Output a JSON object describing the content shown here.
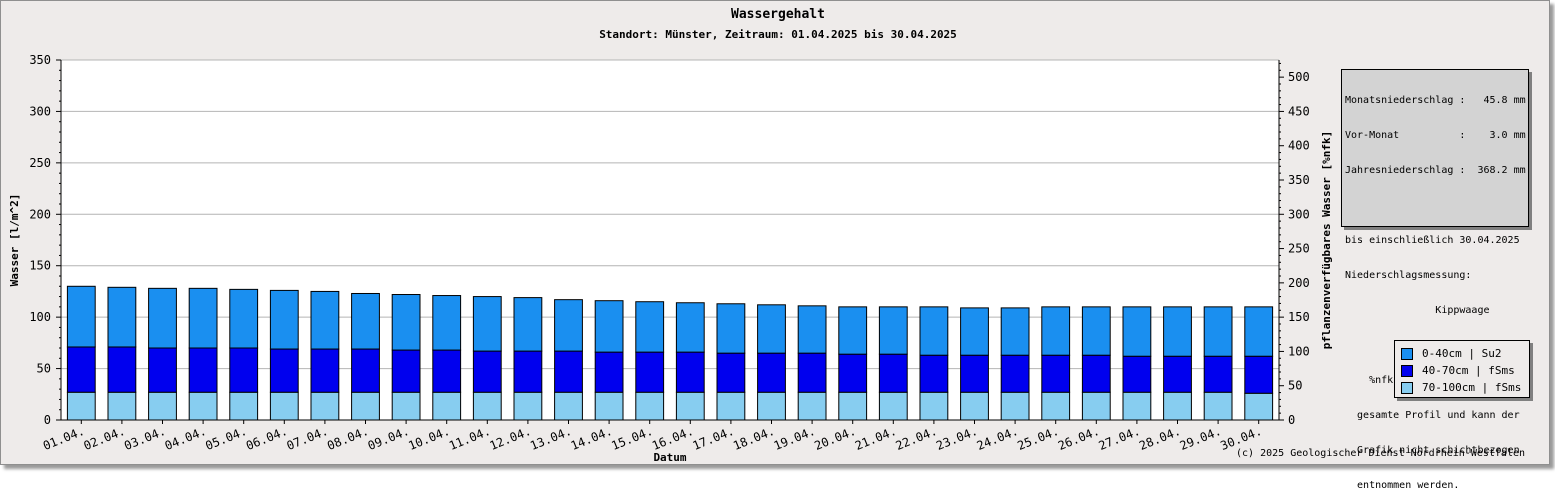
{
  "chart_data": {
    "type": "bar",
    "stacked": true,
    "title": "Wassergehalt",
    "subtitle": "Standort: Münster, Zeitraum: 01.04.2025 bis 30.04.2025",
    "xlabel": "Datum",
    "ylabel": "Wasser [l/m^2]",
    "ylabel_right": "pflanzenverfügbares Wasser [%nfk]",
    "ylim": [
      0,
      350
    ],
    "y_ticks": [
      0,
      50,
      100,
      150,
      200,
      250,
      300,
      350
    ],
    "ylim_right": [
      0,
      525
    ],
    "y_ticks_right": [
      0,
      50,
      100,
      150,
      200,
      250,
      300,
      350,
      400,
      450,
      500
    ],
    "grid": true,
    "legend_position": "bottom-right",
    "categories": [
      "01.04.",
      "02.04.",
      "03.04.",
      "04.04.",
      "05.04.",
      "06.04.",
      "07.04.",
      "08.04.",
      "09.04.",
      "10.04.",
      "11.04.",
      "12.04.",
      "13.04.",
      "14.04.",
      "15.04.",
      "16.04.",
      "17.04.",
      "18.04.",
      "19.04.",
      "20.04.",
      "21.04.",
      "22.04.",
      "23.04.",
      "24.04.",
      "25.04.",
      "26.04.",
      "27.04.",
      "28.04.",
      "29.04.",
      "30.04."
    ],
    "series": [
      {
        "name": "70-100cm | fSms",
        "color": "#87cdf0",
        "values": [
          27,
          27,
          27,
          27,
          27,
          27,
          27,
          27,
          27,
          27,
          27,
          27,
          27,
          27,
          27,
          27,
          27,
          27,
          27,
          27,
          27,
          27,
          27,
          27,
          27,
          27,
          27,
          27,
          27,
          26
        ]
      },
      {
        "name": "40-70cm | fSms",
        "color": "#0000ee",
        "values": [
          44,
          44,
          43,
          43,
          43,
          42,
          42,
          42,
          41,
          41,
          40,
          40,
          40,
          39,
          39,
          39,
          38,
          38,
          38,
          37,
          37,
          36,
          36,
          36,
          36,
          36,
          35,
          35,
          35,
          36
        ]
      },
      {
        "name": "0-40cm | Su2",
        "color": "#1a8ff0",
        "values": [
          59,
          58,
          58,
          58,
          57,
          57,
          56,
          54,
          54,
          53,
          53,
          52,
          50,
          50,
          49,
          48,
          48,
          47,
          46,
          46,
          46,
          47,
          46,
          46,
          47,
          47,
          48,
          48,
          48,
          48
        ]
      }
    ]
  },
  "info": {
    "lines": [
      "Monatsniederschlag :   45.8 mm",
      "Vor-Monat          :    3.0 mm",
      "Jahresniederschlag :  368.2 mm",
      "",
      "bis einschließlich 30.04.2025",
      "Niederschlagsmessung:",
      "               Kippwaage",
      "",
      "    %nfk bezieht sich auf das",
      "  gesamte Profil und kann der",
      "  Grafik nicht schichtbezogen",
      "  entnommen werden."
    ]
  },
  "legend": [
    {
      "label": "0-40cm | Su2",
      "color": "#1a8ff0"
    },
    {
      "label": "40-70cm | fSms",
      "color": "#0000ee"
    },
    {
      "label": "70-100cm | fSms",
      "color": "#87cdf0"
    }
  ],
  "copyright": "(c) 2025 Geologischer Dienst Nordrhein-Westfalen"
}
